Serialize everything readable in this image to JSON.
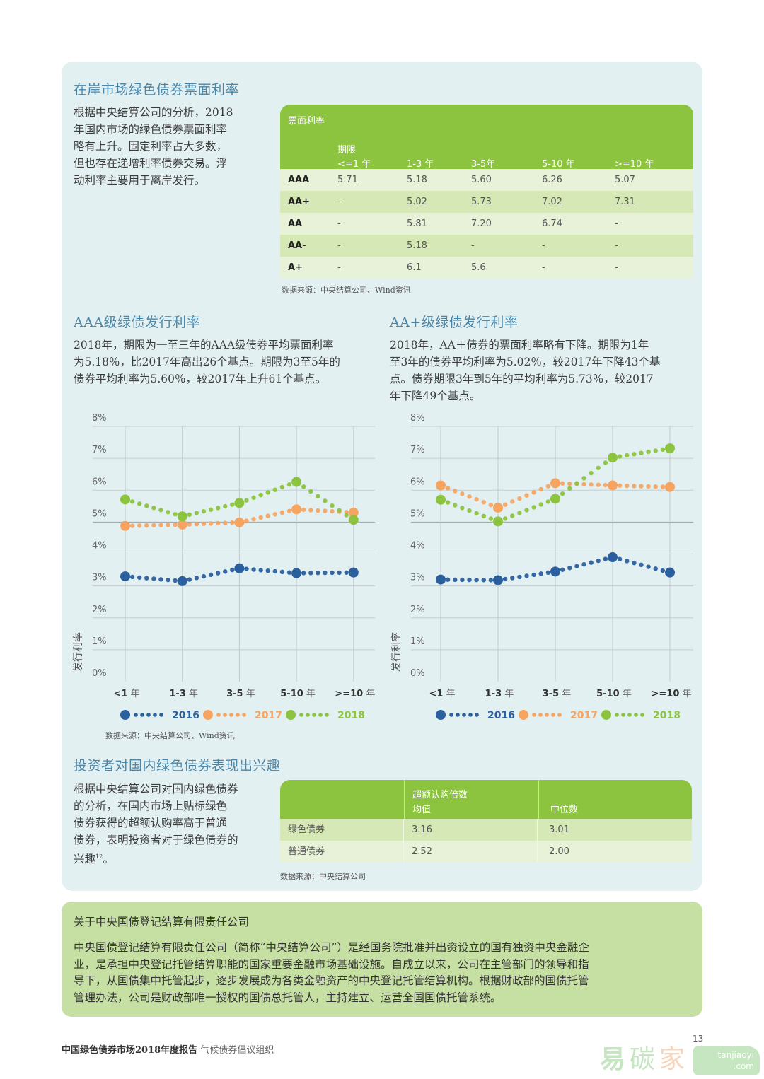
{
  "section1": {
    "title": "在岸市场绿色债券票面利率",
    "paragraph_lines": [
      "根据中央结算公司的分析，2018",
      "年国内市场的绿色债券票面利率",
      "略有上升。固定利率占大多数，",
      "但也存在递增利率债券交易。浮",
      "动利率主要用于离岸发行。"
    ],
    "table": {
      "caption": "票面利率",
      "term_label": "期限",
      "columns": [
        "<=1 年",
        "1-3 年",
        "3-5年",
        "5-10 年",
        ">=10 年"
      ],
      "rows": [
        {
          "rating": "AAA",
          "values": [
            "5.71",
            "5.18",
            "5.60",
            "6.26",
            "5.07"
          ]
        },
        {
          "rating": "AA+",
          "values": [
            "-",
            "5.02",
            "5.73",
            "7.02",
            "7.31"
          ]
        },
        {
          "rating": "AA",
          "values": [
            "-",
            "5.81",
            "7.20",
            "6.74",
            "-"
          ]
        },
        {
          "rating": "AA-",
          "values": [
            "-",
            "5.18",
            "-",
            "-",
            "-"
          ]
        },
        {
          "rating": "A+",
          "values": [
            "-",
            "6.1",
            "5.6",
            "-",
            "-"
          ]
        }
      ],
      "source": "数据来源：中央结算公司、Wind资讯"
    }
  },
  "section_aaa": {
    "title": "AAA级绿债发行利率",
    "paragraph_lines": [
      "2018年，期限为一至三年的AAA级债券平均票面利率",
      "为5.18％，比2017年高出26个基点。期限为3至5年的",
      "债券平均利率为5.60％，较2017年上升61个基点。"
    ]
  },
  "section_aaplus": {
    "title": "AA+级绿债发行利率",
    "paragraph_lines": [
      "2018年，AA＋债券的票面利率略有下降。期限为1年",
      "至3年的债券平均利率为5.02％，较2017年下降43个基",
      "点。债券期限3年到5年的平均利率为5.73％，较2017",
      "年下降49个基点。"
    ]
  },
  "chart_data": [
    {
      "type": "line",
      "title": "AAA级绿债发行利率",
      "xlabel": "",
      "ylabel": "发行利率",
      "categories": [
        "<1 年",
        "1-3 年",
        "3-5 年",
        "5-10 年",
        ">=10 年"
      ],
      "category_bold": [
        "<1",
        "1-3",
        "3-5",
        "5-10",
        ">=10"
      ],
      "yticks": [
        "0%",
        "1%",
        "2%",
        "3%",
        "4%",
        "5%",
        "6%",
        "7%",
        "8%"
      ],
      "ylim": [
        0,
        8
      ],
      "grid": true,
      "legend": "bottom",
      "series": [
        {
          "name": "2016",
          "color": "#2a5f9e",
          "values": [
            3.3,
            3.15,
            3.55,
            3.4,
            3.42
          ]
        },
        {
          "name": "2017",
          "color": "#f5a462",
          "values": [
            4.88,
            4.92,
            4.99,
            5.4,
            5.3
          ]
        },
        {
          "name": "2018",
          "color": "#8cc43f",
          "values": [
            5.71,
            5.18,
            5.6,
            6.26,
            5.07
          ]
        }
      ]
    },
    {
      "type": "line",
      "title": "AA+级绿债发行利率",
      "xlabel": "",
      "ylabel": "发行利率",
      "categories": [
        "<1 年",
        "1-3 年",
        "3-5年",
        "5-10 年",
        ">=10 年"
      ],
      "category_bold": [
        "<1",
        "1-3",
        "3-5",
        "5-10",
        ">=10"
      ],
      "yticks": [
        "0%",
        "1%",
        "2%",
        "3%",
        "4%",
        "5%",
        "6%",
        "7%",
        "8%"
      ],
      "ylim": [
        0,
        8
      ],
      "grid": true,
      "legend": "bottom",
      "series": [
        {
          "name": "2016",
          "color": "#2a5f9e",
          "values": [
            3.2,
            3.18,
            3.45,
            3.9,
            3.42
          ]
        },
        {
          "name": "2017",
          "color": "#f5a462",
          "values": [
            6.15,
            5.45,
            6.22,
            6.15,
            6.1
          ]
        },
        {
          "name": "2018",
          "color": "#8cc43f",
          "values": [
            5.7,
            5.02,
            5.73,
            7.02,
            7.31
          ]
        }
      ]
    }
  ],
  "charts_source": "数据来源：中央结算公司、Wind资讯",
  "section_investor": {
    "title": "投资者对国内绿色债券表现出兴趣",
    "paragraph_lines": [
      "根据中央结算公司对国内绿色债券",
      "的分析，在国内市场上贴标绿色",
      "债券获得的超额认购率高于普通",
      "债券，表明投资者对于绿色债券的"
    ],
    "paragraph_last": "兴趣",
    "footnote": "12",
    "paragraph_end": "。",
    "table": {
      "header_col1_line1": "超额认购倍数",
      "header_col1_line2": "均值",
      "header_col2": "中位数",
      "rows": [
        {
          "label": "绿色债券",
          "mean": "3.16",
          "median": "3.01"
        },
        {
          "label": "普通债券",
          "mean": "2.52",
          "median": "2.00"
        }
      ],
      "source": "数据来源：中央结算公司"
    }
  },
  "about": {
    "title": "关于中央国债登记结算有限责任公司",
    "lines": [
      "中央国债登记结算有限责任公司（简称“中央结算公司”）是经国务院批准并出资设立的国有独资中央金融企",
      "业，是承担中央登记托管结算职能的国家重要金融市场基础设施。自成立以来，公司在主管部门的领导和指",
      "导下，从国债集中托管起步，逐步发展成为各类金融资产的中央登记托管结算机构。根据财政部的国债托管",
      "管理办法，公司是财政部唯一授权的国债总托管人，主持建立、运营全国国债托管系统。"
    ]
  },
  "footer": {
    "report_title": "中国绿色债券市场2018年度报告",
    "org": "气候债券倡议组织",
    "page_number": "13"
  },
  "watermark": {
    "chars": [
      "易",
      "碳",
      "家"
    ],
    "domain_line1": "tanjiaoyi",
    "domain_line2": ".com"
  },
  "colors": {
    "card_bg": "#e3f0f2",
    "accent_green": "#8cc43f",
    "title_blue": "#4a86a8",
    "about_bg": "#c6e0a3"
  }
}
